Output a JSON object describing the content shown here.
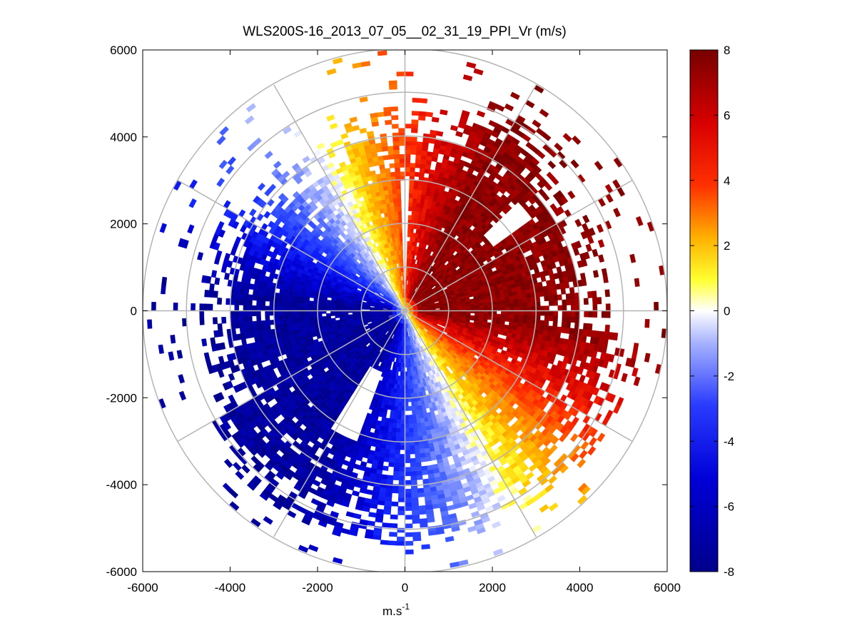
{
  "chart_data": {
    "type": "heatmap",
    "subtype": "polar-ppi-scan",
    "title": "WLS200S-16_2013_07_05__02_31_19_PPI_Vr (m/s)",
    "xlabel_base": "m.s",
    "xlabel_exp": "-1",
    "ylabel": "",
    "xlim": [
      -6000,
      6000
    ],
    "ylim": [
      -6000,
      6000
    ],
    "xticks": [
      -6000,
      -4000,
      -2000,
      0,
      2000,
      4000,
      6000
    ],
    "yticks": [
      6000,
      4000,
      2000,
      0,
      -2000,
      -4000,
      -6000
    ],
    "xtick_labels": [
      "-6000",
      "-4000",
      "-2000",
      "0",
      "2000",
      "4000",
      "6000"
    ],
    "ytick_labels": [
      "6000",
      "4000",
      "2000",
      "0",
      "-2000",
      "-4000",
      "-6000"
    ],
    "polar_rings": [
      1000,
      2000,
      3000,
      4000,
      5000,
      6000
    ],
    "polar_spokes_deg": [
      0,
      30,
      60,
      90,
      120,
      150,
      180,
      210,
      240,
      270,
      300,
      330
    ],
    "colorbar": {
      "min": -8,
      "max": 8,
      "tick_values": [
        8,
        6,
        4,
        2,
        0,
        -2,
        -4,
        -6,
        -8
      ],
      "tick_labels": [
        "8",
        "6",
        "4",
        "2",
        "0",
        "-2",
        "-4",
        "-6",
        "-8"
      ],
      "colormap": "blue-white-red"
    },
    "field_description": {
      "approaching_max_ms": -7.5,
      "receding_max_ms": 7.5,
      "zero_line_bearing_deg": 62,
      "data_max_range_m": 6000
    }
  }
}
